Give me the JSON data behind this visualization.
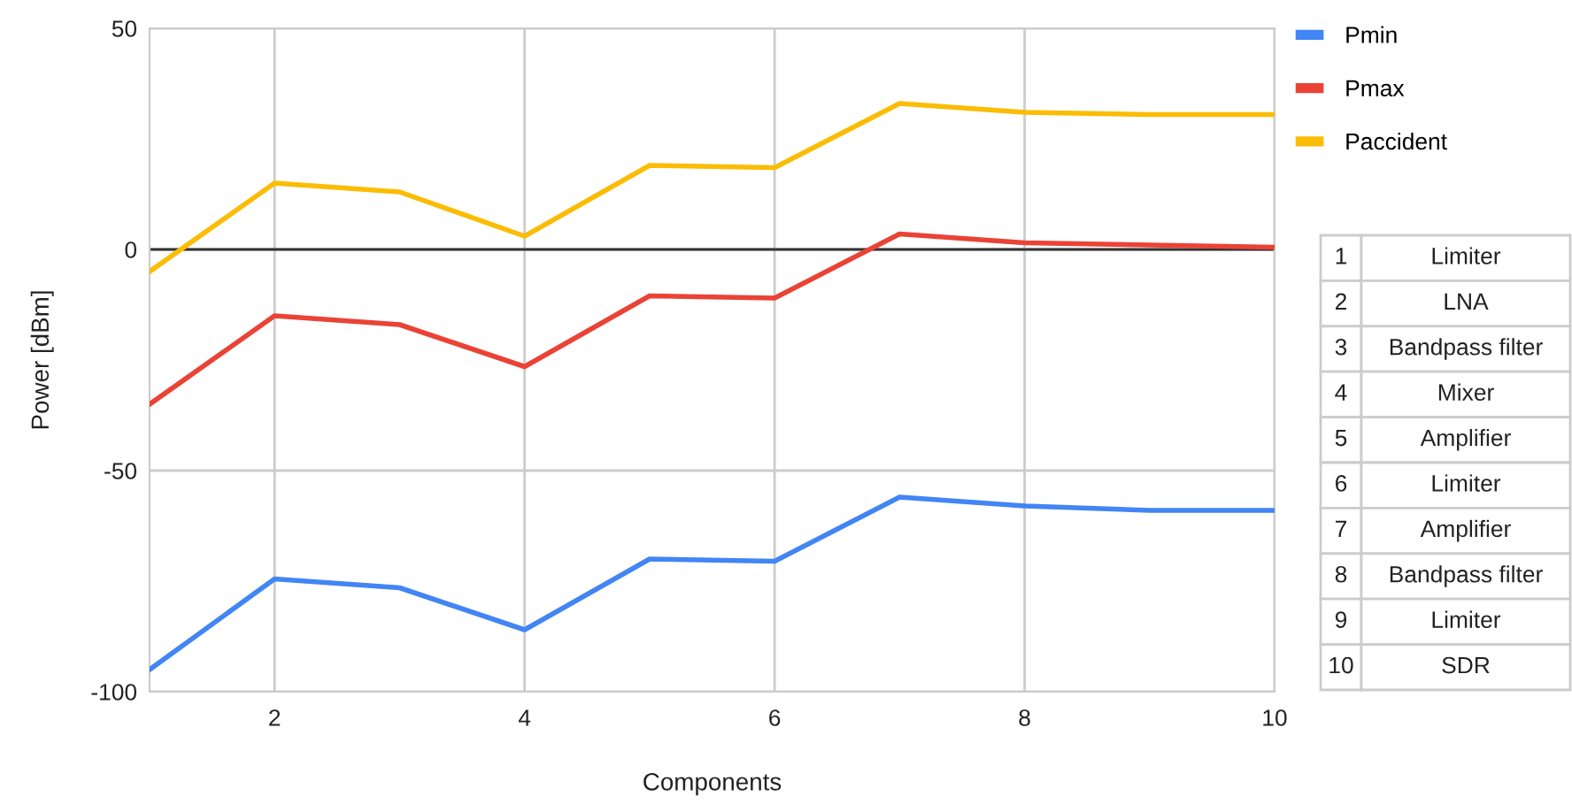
{
  "chart_data": {
    "type": "line",
    "xlabel": "Components",
    "ylabel": "Power [dBm]",
    "x": [
      1,
      2,
      3,
      4,
      5,
      6,
      7,
      8,
      9,
      10
    ],
    "series": [
      {
        "name": "Pmin",
        "color": "#4285f4",
        "values": [
          -95,
          -74.5,
          -76.5,
          -86,
          -70,
          -70.5,
          -56,
          -58,
          -59,
          -59
        ]
      },
      {
        "name": "Pmax",
        "color": "#ea4335",
        "values": [
          -35,
          -15,
          -17,
          -26.5,
          -10.5,
          -11,
          3.5,
          1.5,
          1,
          0.5
        ]
      },
      {
        "name": "Paccident",
        "color": "#fbbc04",
        "values": [
          -5,
          15,
          13,
          3,
          19,
          18.5,
          33,
          31,
          30.5,
          30.5
        ]
      }
    ],
    "xlim": [
      1,
      10
    ],
    "ylim": [
      -100,
      50
    ],
    "xticks": [
      2,
      4,
      6,
      8,
      10
    ],
    "yticks": [
      -100,
      -50,
      0,
      50
    ],
    "ref_lines": [
      {
        "axis": "y",
        "value": 0,
        "color": "#333333"
      }
    ],
    "grid": true,
    "legend": "top right",
    "annotations": [
      "1",
      "Limiter",
      "2",
      "LNA",
      "3",
      "Bandpass filter",
      "4",
      "Mixer",
      "5",
      "Amplifier",
      "6",
      "Limiter",
      "7",
      "Amplifier",
      "8",
      "Bandpass filter",
      "9",
      "Limiter",
      "10",
      "SDR"
    ]
  }
}
